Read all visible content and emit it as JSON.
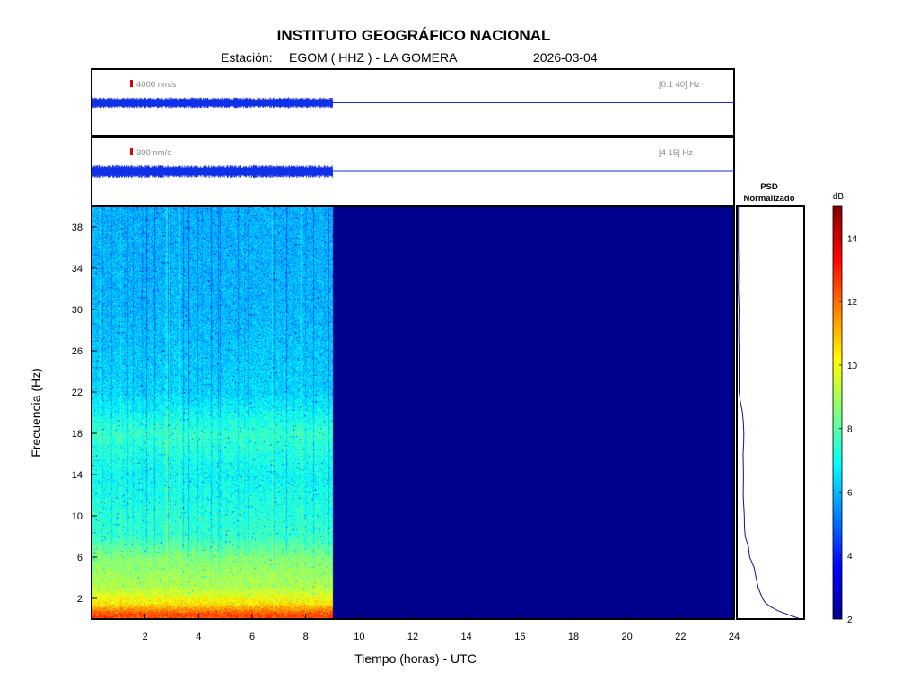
{
  "header": {
    "title": "INSTITUTO GEOGRÁFICO NACIONAL",
    "station_prefix": "Estación:",
    "station": "EGOM ( HHZ ) - LA GOMERA",
    "date": "2026-03-04"
  },
  "colors": {
    "trace": "#1030e8",
    "scale_marker": "#e00000",
    "frame": "#000000",
    "empty_spectrogram": "#00008f",
    "psd_line": "#101090"
  },
  "chart_data": [
    {
      "type": "line",
      "panel": "seismogram-broadband",
      "scale_label": "4000 nm/s",
      "filter_label": "[0.1 40] Hz",
      "x_range": [
        0,
        24
      ],
      "data_until_hour": 9.0,
      "relative_amplitude": 0.32
    },
    {
      "type": "line",
      "panel": "seismogram-filtered",
      "scale_label": "300 nm/s",
      "filter_label": "[4 15] Hz",
      "x_range": [
        0,
        24
      ],
      "data_until_hour": 9.0,
      "relative_amplitude": 0.38
    },
    {
      "type": "heatmap",
      "panel": "spectrogram",
      "xlabel": "Tiempo (horas) - UTC",
      "ylabel": "Frecuencia  (Hz)",
      "xlim": [
        0,
        24
      ],
      "ylim": [
        0,
        40
      ],
      "xticks": [
        2,
        4,
        6,
        8,
        10,
        12,
        14,
        16,
        18,
        20,
        22,
        24
      ],
      "yticks": [
        2,
        6,
        10,
        14,
        18,
        22,
        26,
        30,
        34,
        38
      ],
      "data_until_hour": 9.0,
      "typical_db_by_frequency": [
        {
          "hz": 0.5,
          "db": 12.5
        },
        {
          "hz": 1.5,
          "db": 10.5
        },
        {
          "hz": 3,
          "db": 9.2
        },
        {
          "hz": 6,
          "db": 8.6
        },
        {
          "hz": 8,
          "db": 7.6
        },
        {
          "hz": 14,
          "db": 7.0
        },
        {
          "hz": 18,
          "db": 7.6
        },
        {
          "hz": 22,
          "db": 6.4
        },
        {
          "hz": 30,
          "db": 6.0
        },
        {
          "hz": 40,
          "db": 5.9
        }
      ]
    },
    {
      "type": "line",
      "panel": "psd",
      "title_line1": "PSD",
      "title_line2": "Normalizado",
      "ylim": [
        0,
        40
      ],
      "points": [
        [
          0.0,
          0.96
        ],
        [
          0.4,
          0.78
        ],
        [
          0.8,
          0.62
        ],
        [
          1.2,
          0.5
        ],
        [
          1.6,
          0.42
        ],
        [
          2.0,
          0.38
        ],
        [
          3.0,
          0.32
        ],
        [
          4.0,
          0.28
        ],
        [
          5.0,
          0.24
        ],
        [
          6.0,
          0.19
        ],
        [
          7.0,
          0.16
        ],
        [
          8.0,
          0.12
        ],
        [
          9.0,
          0.1
        ],
        [
          10.0,
          0.09
        ],
        [
          12.0,
          0.08
        ],
        [
          14.0,
          0.08
        ],
        [
          16.0,
          0.08
        ],
        [
          17.0,
          0.09
        ],
        [
          18.0,
          0.1
        ],
        [
          19.0,
          0.08
        ],
        [
          20.0,
          0.07
        ],
        [
          21.0,
          0.05
        ],
        [
          21.5,
          0.03
        ],
        [
          22.0,
          0.02
        ],
        [
          24.0,
          0.02
        ],
        [
          26.0,
          0.02
        ],
        [
          28.0,
          0.015
        ],
        [
          30.0,
          0.02
        ],
        [
          32.0,
          0.01
        ],
        [
          34.0,
          0.015
        ],
        [
          36.0,
          0.01
        ],
        [
          38.0,
          0.01
        ],
        [
          40.0,
          0.01
        ]
      ]
    },
    {
      "type": "heatmap",
      "panel": "colorbar",
      "label": "dB",
      "range": [
        2,
        15
      ],
      "ticks": [
        2,
        4,
        6,
        8,
        10,
        12,
        14
      ],
      "colormap": "jet"
    }
  ]
}
